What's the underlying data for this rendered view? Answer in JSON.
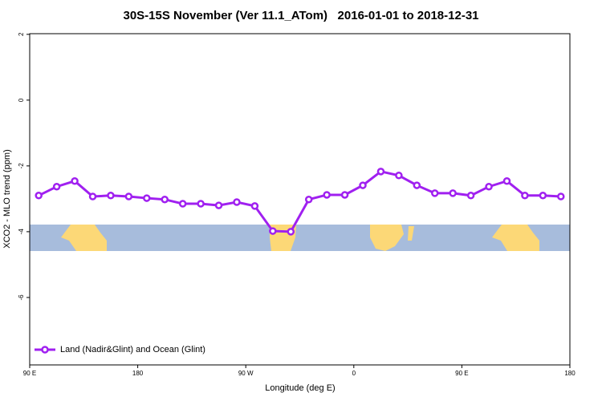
{
  "chart_data": {
    "type": "line",
    "title": "30S-15S November (Ver 11.1_ATom)   2016-01-01 to 2018-12-31",
    "x_label": "Longitude (deg E)",
    "y_label": "XCO2 - MLO trend (ppm)",
    "x": [
      97.5,
      112.5,
      127.5,
      142.5,
      157.5,
      172.5,
      187.5,
      202.5,
      217.5,
      232.5,
      247.5,
      262.5,
      277.5,
      292.5,
      307.5,
      322.5,
      337.5,
      352.5,
      367.5,
      382.5,
      397.5,
      412.5,
      427.5,
      442.5,
      457.5,
      472.5,
      487.5,
      502.5,
      517.5,
      532.5
    ],
    "series": [
      {
        "name": "Land (Nadir&Glint) and Ocean (Glint)",
        "color": "#a020f0",
        "values": [
          -2.9,
          -2.63,
          -2.46,
          -2.93,
          -2.9,
          -2.93,
          -2.98,
          -3.02,
          -3.15,
          -3.15,
          -3.2,
          -3.1,
          -3.22,
          -3.98,
          -4.0,
          -3.02,
          -2.88,
          -2.88,
          -2.59,
          -2.17,
          -2.29,
          -2.59,
          -2.83,
          -2.83,
          -2.9,
          -2.63,
          -2.46,
          -2.9,
          -2.9,
          -2.93
        ]
      }
    ],
    "xlim": [
      90,
      540
    ],
    "xticks": [
      {
        "value": 90,
        "label": "90 E"
      },
      {
        "value": 180,
        "label": "180"
      },
      {
        "value": 270,
        "label": "90 W"
      },
      {
        "value": 360,
        "label": "0"
      },
      {
        "value": 450,
        "label": "90 E"
      },
      {
        "value": 540,
        "label": "180"
      }
    ],
    "ylim": [
      -8.05,
      2.02
    ],
    "yticks": [
      2,
      0,
      -2,
      -4,
      -6
    ],
    "legend": "bottom-left"
  }
}
